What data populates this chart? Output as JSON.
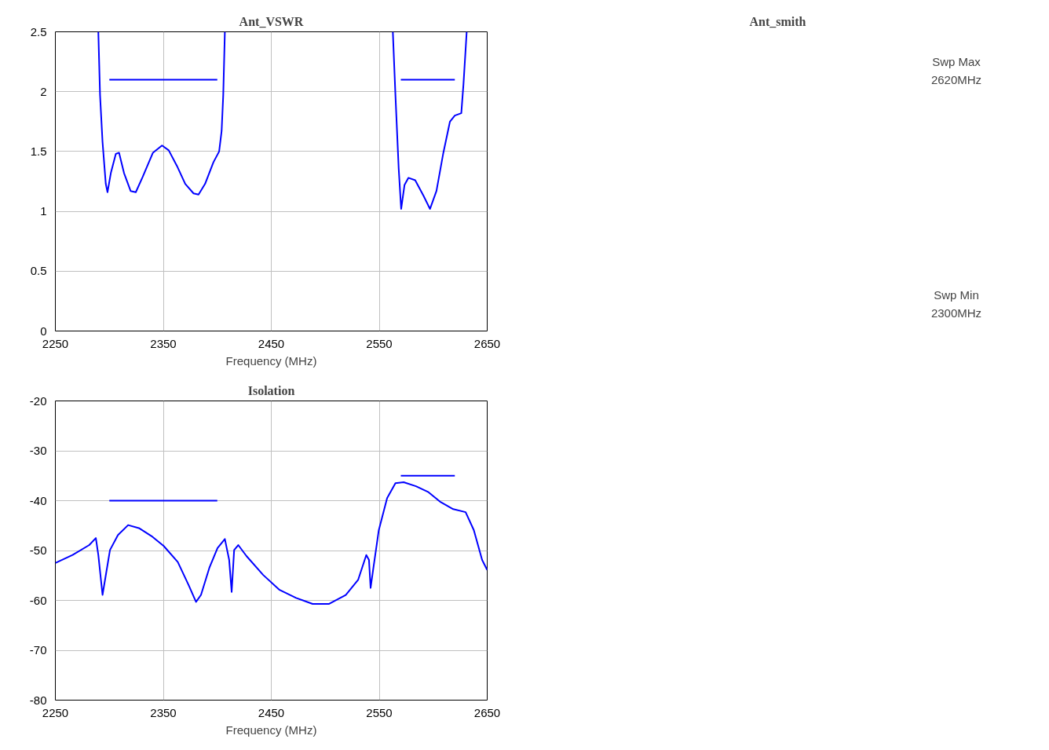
{
  "chart_data": [
    {
      "type": "line",
      "title": "Ant_VSWR",
      "xlabel": "Frequency (MHz)",
      "xlim": [
        2250,
        2650
      ],
      "xticks": [
        2250,
        2350,
        2450,
        2550,
        2650
      ],
      "ylim": [
        0,
        2.5
      ],
      "yticks": [
        0,
        0.5,
        1,
        1.5,
        2,
        2.5
      ],
      "grid": true,
      "line_style": "solid",
      "series": [
        {
          "color": "#0000ff",
          "x": [
            2289.8,
            2291.4,
            2293.7,
            2296.7,
            2298.3,
            2301.4,
            2306,
            2309,
            2313.6,
            2319.7,
            2324.5,
            2331,
            2340.4,
            2348.8,
            2355,
            2362.6,
            2370.3,
            2378,
            2382.6,
            2388.7,
            2396.4,
            2401.7,
            2404,
            2405.5,
            2407,
            2450,
            2562.6,
            2565,
            2568,
            2570.3,
            2573.4,
            2577,
            2583.3,
            2591,
            2597,
            2603,
            2609.4,
            2615.5,
            2620,
            2626,
            2628,
            2631
          ],
          "values": [
            2.5,
            1.97,
            1.58,
            1.23,
            1.16,
            1.32,
            1.48,
            1.49,
            1.32,
            1.17,
            1.16,
            1.29,
            1.49,
            1.55,
            1.51,
            1.38,
            1.23,
            1.15,
            1.14,
            1.23,
            1.41,
            1.5,
            1.67,
            1.97,
            2.5,
            null,
            2.5,
            1.97,
            1.36,
            1.02,
            1.22,
            1.28,
            1.26,
            1.13,
            1.02,
            1.17,
            1.49,
            1.75,
            1.8,
            1.82,
            2.06,
            2.5
          ]
        },
        {
          "color": "#0000ff",
          "x": [
            2300,
            2400
          ],
          "values": [
            2.1,
            2.1
          ]
        },
        {
          "color": "#0000ff",
          "x": [
            2570,
            2620
          ],
          "values": [
            2.1,
            2.1
          ]
        }
      ]
    },
    {
      "type": "other",
      "title": "Ant_smith",
      "annotations": [
        "Swp Max",
        "2620MHz",
        "Swp Min",
        "2300MHz"
      ]
    },
    {
      "type": "line",
      "title": "Isolation",
      "xlabel": "Frequency (MHz)",
      "xlim": [
        2250,
        2650
      ],
      "xticks": [
        2250,
        2350,
        2450,
        2550,
        2650
      ],
      "ylim": [
        -80,
        -20
      ],
      "yticks": [
        -80,
        -70,
        -60,
        -50,
        -40,
        -30,
        -20
      ],
      "grid": true,
      "line_style": "solid",
      "series": [
        {
          "color": "#0000ff",
          "x": [
            2250,
            2266,
            2281.4,
            2287.5,
            2289.8,
            2293.7,
            2296,
            2300.6,
            2308,
            2317.4,
            2327.4,
            2339,
            2350.4,
            2363.4,
            2373.4,
            2380.3,
            2384.9,
            2392.6,
            2400.2,
            2407,
            2411,
            2413.3,
            2415.6,
            2419.4,
            2427,
            2442.5,
            2457.7,
            2473,
            2488.3,
            2503.6,
            2519,
            2530.4,
            2538,
            2540.5,
            2542,
            2544.3,
            2549.6,
            2557.3,
            2565,
            2572.6,
            2584,
            2595.6,
            2607,
            2618.5,
            2630,
            2637.6,
            2645.3,
            2650
          ],
          "values": [
            -52.5,
            -50.9,
            -48.9,
            -47.5,
            -50.9,
            -58.9,
            -55.9,
            -49.9,
            -46.9,
            -44.9,
            -45.5,
            -47.1,
            -49.1,
            -52.3,
            -56.9,
            -60.3,
            -58.9,
            -53.5,
            -49.5,
            -47.7,
            -51.9,
            -58.3,
            -49.9,
            -48.9,
            -51.1,
            -54.9,
            -57.9,
            -59.5,
            -60.7,
            -60.7,
            -58.9,
            -55.9,
            -50.9,
            -51.9,
            -57.5,
            -53.9,
            -45.9,
            -39.5,
            -36.5,
            -36.3,
            -37.1,
            -38.3,
            -40.3,
            -41.7,
            -42.3,
            -45.9,
            -51.9,
            -53.9
          ]
        },
        {
          "color": "#0000ff",
          "x": [
            2300,
            2400
          ],
          "values": [
            -40,
            -40
          ]
        },
        {
          "color": "#0000ff",
          "x": [
            2570,
            2620
          ],
          "values": [
            -35,
            -35
          ]
        }
      ]
    }
  ]
}
